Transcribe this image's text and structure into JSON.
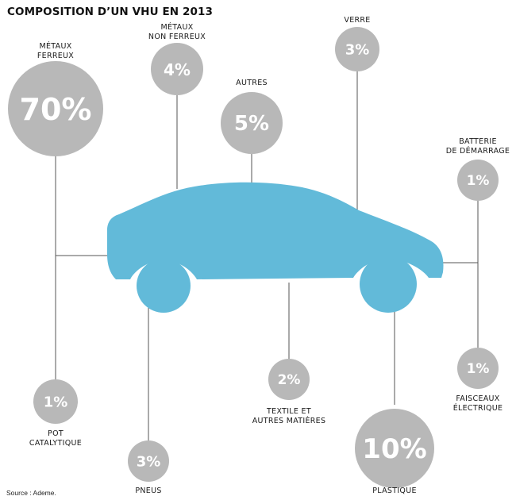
{
  "title": "COMPOSITION D’UN VHU EN 2013",
  "source": "Source : Ademe.",
  "colors": {
    "car": "#62BAD9",
    "bubble": "#B8B8B8",
    "line": "#555555",
    "text": "#1a1a1a"
  },
  "components": [
    {
      "id": "metaux-ferreux",
      "label_lines": [
        "MÉTAUX",
        "FERREUX"
      ],
      "value": "70%",
      "share": 70
    },
    {
      "id": "metaux-non-ferreux",
      "label_lines": [
        "MÉTAUX",
        "NON FERREUX"
      ],
      "value": "4%",
      "share": 4
    },
    {
      "id": "autres",
      "label_lines": [
        "AUTRES"
      ],
      "value": "5%",
      "share": 5
    },
    {
      "id": "verre",
      "label_lines": [
        "VERRE"
      ],
      "value": "3%",
      "share": 3
    },
    {
      "id": "batterie",
      "label_lines": [
        "BATTERIE",
        "DE DÉMARRAGE"
      ],
      "value": "1%",
      "share": 1
    },
    {
      "id": "pot-catalytique",
      "label_lines": [
        "POT",
        "CATALYTIQUE"
      ],
      "value": "1%",
      "share": 1
    },
    {
      "id": "pneus",
      "label_lines": [
        "PNEUS"
      ],
      "value": "3%",
      "share": 3
    },
    {
      "id": "textile",
      "label_lines": [
        "TEXTILE ET",
        "AUTRES MATIÈRES"
      ],
      "value": "2%",
      "share": 2
    },
    {
      "id": "plastique",
      "label_lines": [
        "PLASTIQUE"
      ],
      "value": "10%",
      "share": 10
    },
    {
      "id": "faisceaux",
      "label_lines": [
        "FAISCEAUX",
        "ÉLECTRIQUE"
      ],
      "value": "1%",
      "share": 1
    }
  ]
}
